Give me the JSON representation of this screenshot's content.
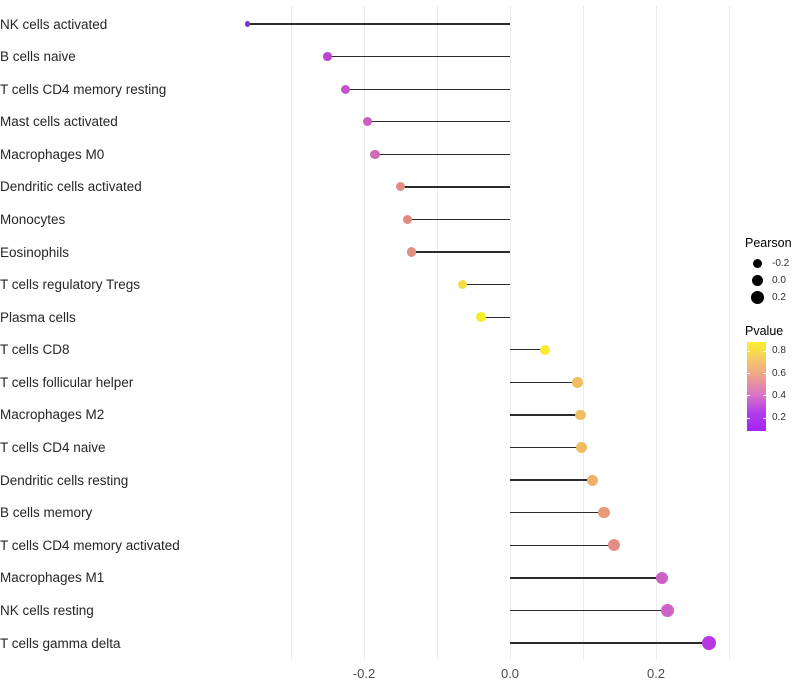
{
  "chart_data": {
    "type": "scatter",
    "subtype": "lollipop",
    "title": "",
    "xlabel": "",
    "ylabel": "",
    "xlim": [
      -0.375,
      0.305
    ],
    "grid_values": [
      -0.3,
      -0.2,
      -0.1,
      0.0,
      0.1,
      0.2,
      0.3
    ],
    "x_ticks": [
      {
        "value": -0.2,
        "label": "-0.2"
      },
      {
        "value": 0.0,
        "label": "0.0"
      },
      {
        "value": 0.2,
        "label": "0.2"
      }
    ],
    "points": [
      {
        "label": "NK cells activated",
        "pearson": -0.36,
        "pvalue": 0.1,
        "color": "#8C2FC7",
        "radius": 2.6
      },
      {
        "label": "B cells naive",
        "pearson": -0.25,
        "pvalue": 0.25,
        "color": "#BC45D1",
        "radius": 4.3
      },
      {
        "label": "T cells CD4 memory resting",
        "pearson": -0.225,
        "pvalue": 0.3,
        "color": "#C355CB",
        "radius": 4.5
      },
      {
        "label": "Mast cells activated",
        "pearson": -0.195,
        "pvalue": 0.33,
        "color": "#CB60C2",
        "radius": 4.5
      },
      {
        "label": "Macrophages M0",
        "pearson": -0.185,
        "pvalue": 0.4,
        "color": "#D06CB5",
        "radius": 4.7
      },
      {
        "label": "Dendritic cells activated",
        "pearson": -0.15,
        "pvalue": 0.5,
        "color": "#E08D86",
        "radius": 4.5
      },
      {
        "label": "Monocytes",
        "pearson": -0.14,
        "pvalue": 0.5,
        "color": "#E08B80",
        "radius": 4.6
      },
      {
        "label": "Eosinophils",
        "pearson": -0.135,
        "pvalue": 0.5,
        "color": "#DF9084",
        "radius": 4.7
      },
      {
        "label": "T cells regulatory  Tregs",
        "pearson": -0.065,
        "pvalue": 0.75,
        "color": "#F2DC49",
        "radius": 4.8
      },
      {
        "label": "Plasma cells",
        "pearson": -0.04,
        "pvalue": 0.85,
        "color": "#F6ED2C",
        "radius": 5.0
      },
      {
        "label": "T cells CD8",
        "pearson": 0.048,
        "pvalue": 0.85,
        "color": "#F6EC32",
        "radius": 5.2
      },
      {
        "label": "T cells follicular helper",
        "pearson": 0.092,
        "pvalue": 0.65,
        "color": "#EFBD62",
        "radius": 5.4
      },
      {
        "label": "Macrophages M2",
        "pearson": 0.097,
        "pvalue": 0.65,
        "color": "#EFBD62",
        "radius": 5.4
      },
      {
        "label": "T cells CD4 naive",
        "pearson": 0.098,
        "pvalue": 0.65,
        "color": "#EFBC63",
        "radius": 5.4
      },
      {
        "label": "Dendritic cells resting",
        "pearson": 0.113,
        "pvalue": 0.6,
        "color": "#EDB169",
        "radius": 5.6
      },
      {
        "label": "B cells memory",
        "pearson": 0.129,
        "pvalue": 0.5,
        "color": "#E89B77",
        "radius": 5.8
      },
      {
        "label": "T cells CD4 memory activated",
        "pearson": 0.142,
        "pvalue": 0.45,
        "color": "#E28E86",
        "radius": 6.0
      },
      {
        "label": "Macrophages M1",
        "pearson": 0.208,
        "pvalue": 0.33,
        "color": "#CD5FC3",
        "radius": 6.3
      },
      {
        "label": "NK cells resting",
        "pearson": 0.216,
        "pvalue": 0.33,
        "color": "#CF63C7",
        "radius": 6.4
      },
      {
        "label": "T cells gamma delta",
        "pearson": 0.272,
        "pvalue": 0.15,
        "color": "#B837E2",
        "radius": 7.0
      }
    ],
    "legend": {
      "size_legend": {
        "title": "Pearson",
        "entries": [
          {
            "label": "-0.2",
            "diameter": 9
          },
          {
            "label": "0.0",
            "diameter": 11
          },
          {
            "label": "0.2",
            "diameter": 13
          }
        ],
        "dot_color": "#000000"
      },
      "color_legend": {
        "title": "Pvalue",
        "ticks": [
          {
            "label": "0.8",
            "pos": 0.1
          },
          {
            "label": "0.6",
            "pos": 0.35
          },
          {
            "label": "0.4",
            "pos": 0.6
          },
          {
            "label": "0.2",
            "pos": 0.85
          }
        ],
        "gradient_top_to_bottom": [
          "#FCEF2D",
          "#F5C869",
          "#EC9F90",
          "#D873C8",
          "#B13BEC",
          "#A325F2"
        ]
      }
    },
    "style": {
      "grid_color": "#ebebeb",
      "stem_color": "#2b2b2b",
      "background": "#ffffff"
    },
    "layout_hints": {
      "grid": "vertical major gridlines only",
      "legend_position": "right",
      "orientation": "horizontal lollipop, stems anchored at x=0"
    }
  }
}
